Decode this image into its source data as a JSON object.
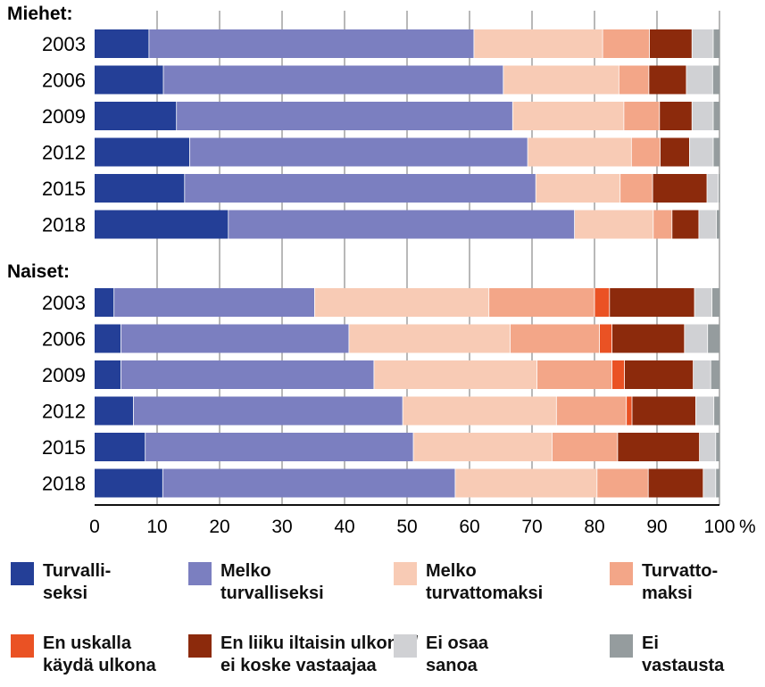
{
  "chart_data": {
    "type": "bar",
    "orientation": "horizontal",
    "stacked": true,
    "xlim": [
      0,
      100
    ],
    "x_ticks": [
      "0",
      "10",
      "20",
      "30",
      "40",
      "50",
      "60",
      "70",
      "80",
      "90",
      "100"
    ],
    "x_unit": "%",
    "grid": "vertical",
    "groups": [
      {
        "label": "Miehet:",
        "rows": [
          {
            "year": "2003",
            "values": [
              8.7,
              52.0,
              20.6,
              7.5,
              0.0,
              6.8,
              3.4,
              1.0
            ]
          },
          {
            "year": "2006",
            "values": [
              11.0,
              54.4,
              18.5,
              4.8,
              0.0,
              6.0,
              4.2,
              1.1
            ]
          },
          {
            "year": "2009",
            "values": [
              13.1,
              53.8,
              17.8,
              5.7,
              0.0,
              5.2,
              3.4,
              1.0
            ]
          },
          {
            "year": "2012",
            "values": [
              15.2,
              54.1,
              16.6,
              4.6,
              0.0,
              4.7,
              3.8,
              1.0
            ]
          },
          {
            "year": "2015",
            "values": [
              14.4,
              56.2,
              13.5,
              5.2,
              0.0,
              8.7,
              1.8,
              0.2
            ]
          },
          {
            "year": "2018",
            "values": [
              21.4,
              55.4,
              12.6,
              3.0,
              0.0,
              4.3,
              2.8,
              0.5
            ]
          }
        ]
      },
      {
        "label": "Naiset:",
        "rows": [
          {
            "year": "2003",
            "values": [
              3.1,
              32.1,
              27.9,
              16.9,
              2.4,
              13.6,
              2.8,
              1.2
            ]
          },
          {
            "year": "2006",
            "values": [
              4.2,
              36.5,
              25.8,
              14.3,
              2.0,
              11.6,
              3.7,
              1.9
            ]
          },
          {
            "year": "2009",
            "values": [
              4.2,
              40.5,
              26.1,
              12.0,
              2.0,
              11.0,
              2.8,
              1.4
            ]
          },
          {
            "year": "2012",
            "values": [
              6.2,
              43.1,
              24.6,
              11.2,
              0.9,
              10.2,
              2.9,
              0.9
            ]
          },
          {
            "year": "2015",
            "values": [
              8.1,
              42.9,
              22.2,
              10.5,
              0.0,
              13.1,
              2.6,
              0.6
            ]
          },
          {
            "year": "2018",
            "values": [
              10.9,
              46.8,
              22.7,
              8.2,
              0.0,
              8.8,
              2.0,
              0.6
            ]
          }
        ]
      }
    ],
    "series": [
      {
        "name": "Turvalli-\nseksi",
        "color": "#243f97"
      },
      {
        "name": "Melko\nturvalliseksi",
        "color": "#7b7fc0"
      },
      {
        "name": "Melko\nturvattomaksi",
        "color": "#f8cbb5"
      },
      {
        "name": "Turvatto-\nmaksi",
        "color": "#f3a688"
      },
      {
        "name": "En uskalla\nkäydä ulkona",
        "color": "#ea5224"
      },
      {
        "name": "En liiku iltaisin ulkona /\nei koske vastaajaa",
        "color": "#8c2a0c"
      },
      {
        "name": "Ei osaa\nsanoa",
        "color": "#d0d1d4"
      },
      {
        "name": "Ei\nvastausta",
        "color": "#959c9e"
      }
    ]
  }
}
